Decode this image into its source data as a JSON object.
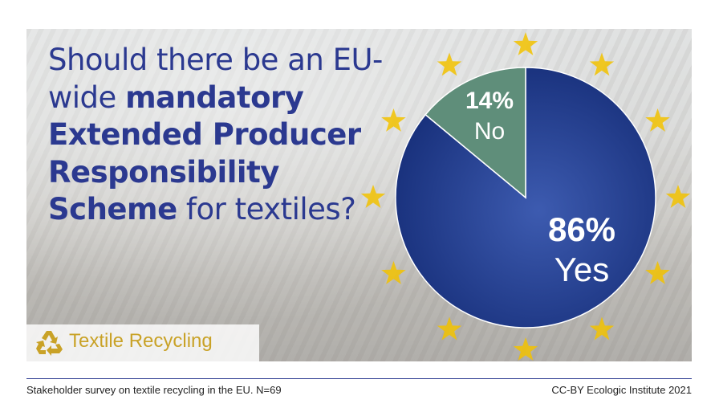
{
  "question": {
    "part1": "Should there be an EU-wide ",
    "bold1": "mandatory Extended Producer Responsibility Scheme",
    "part2": " for textiles?"
  },
  "chart_data": {
    "type": "pie",
    "slices": [
      {
        "label": "Yes",
        "value": 86,
        "value_text": "86%",
        "color": "#1f3a8a"
      },
      {
        "label": "No",
        "value": 14,
        "value_text": "14%",
        "color": "#5f8e7a"
      }
    ]
  },
  "badge": {
    "label": "Textile Recycling",
    "icon": "recycle-icon",
    "color": "#c9a227"
  },
  "footer": {
    "source": "Stakeholder survey on textile recycling in the EU. N=69",
    "credit": "CC-BY Ecologic Institute 2021"
  },
  "colors": {
    "brand_blue": "#2b3990",
    "star_gold": "#f2c200",
    "rule": "#2b3990"
  }
}
